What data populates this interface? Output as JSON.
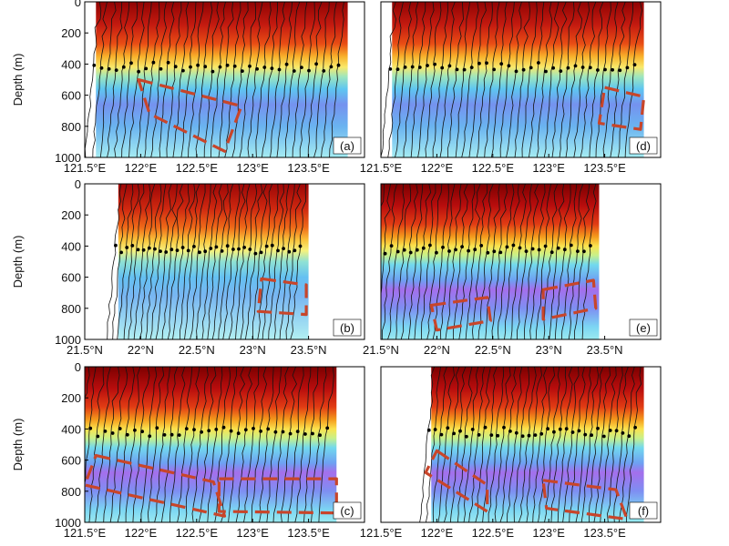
{
  "figure": {
    "panels": [
      {
        "id": "a",
        "label": "(a)",
        "axis": "lon",
        "ylabel": "Depth (m)",
        "yticks": [
          "0",
          "200",
          "400",
          "600",
          "800",
          "1000"
        ],
        "xticks": [
          "121.5°E",
          "122°E",
          "122.5°E",
          "123°E",
          "123.5°E"
        ],
        "data_range": [
          121.6,
          123.85
        ],
        "dashed_boxes": [
          [
            [
              121.98,
              500
            ],
            [
              122.9,
              670
            ],
            [
              122.75,
              960
            ],
            [
              122.08,
              720
            ]
          ]
        ]
      },
      {
        "id": "d",
        "label": "(d)",
        "axis": "lon",
        "ylabel": "",
        "yticks": [],
        "xticks": [
          "121.5°E",
          "122°E",
          "122.5°E",
          "123°E",
          "123.5°E"
        ],
        "data_range": [
          121.6,
          123.85
        ],
        "dashed_boxes": [
          [
            [
              123.5,
              550
            ],
            [
              123.85,
              610
            ],
            [
              123.82,
              820
            ],
            [
              123.45,
              780
            ]
          ]
        ]
      },
      {
        "id": "b",
        "label": "(b)",
        "axis": "lat",
        "ylabel": "Depth (m)",
        "yticks": [
          "0",
          "200",
          "400",
          "600",
          "800",
          "1000"
        ],
        "xticks": [
          "21.5°N",
          "22°N",
          "22.5°N",
          "23°N",
          "23.5°N"
        ],
        "data_range": [
          21.8,
          23.5
        ],
        "dashed_boxes": [
          [
            [
              23.08,
              610
            ],
            [
              23.48,
              650
            ],
            [
              23.48,
              840
            ],
            [
              23.05,
              820
            ]
          ]
        ]
      },
      {
        "id": "e",
        "label": "(e)",
        "axis": "lat",
        "ylabel": "",
        "yticks": [],
        "xticks": [
          "21.5°N",
          "22°N",
          "22.5°N",
          "23°N",
          "23.5°N"
        ],
        "data_range": [
          21.5,
          23.45
        ],
        "dashed_boxes": [
          [
            [
              21.95,
              780
            ],
            [
              22.45,
              730
            ],
            [
              22.48,
              880
            ],
            [
              22.0,
              940
            ]
          ],
          [
            [
              22.95,
              680
            ],
            [
              23.4,
              620
            ],
            [
              23.42,
              800
            ],
            [
              22.95,
              870
            ]
          ]
        ]
      },
      {
        "id": "c",
        "label": "(c)",
        "axis": "lon",
        "ylabel": "Depth (m)",
        "yticks": [
          "0",
          "200",
          "400",
          "600",
          "800",
          "1000"
        ],
        "xticks": [
          "121.5°E",
          "122°E",
          "122.5°E",
          "123°E",
          "123.5°E"
        ],
        "data_range": [
          121.5,
          123.75
        ],
        "dashed_boxes": [
          [
            [
              121.6,
              570
            ],
            [
              122.65,
              740
            ],
            [
              122.75,
              960
            ],
            [
              121.5,
              760
            ]
          ],
          [
            [
              122.7,
              720
            ],
            [
              123.75,
              720
            ],
            [
              123.75,
              940
            ],
            [
              122.7,
              930
            ]
          ]
        ]
      },
      {
        "id": "f",
        "label": "(f)",
        "axis": "lon",
        "ylabel": "",
        "yticks": [],
        "xticks": [
          "121.5°E",
          "122°E",
          "122.5°E",
          "123°E",
          "123.5°E"
        ],
        "data_range": [
          121.95,
          123.85
        ],
        "dashed_boxes": [
          [
            [
              122.0,
              540
            ],
            [
              122.45,
              760
            ],
            [
              122.45,
              930
            ],
            [
              121.9,
              680
            ]
          ],
          [
            [
              122.95,
              730
            ],
            [
              123.6,
              790
            ],
            [
              123.7,
              980
            ],
            [
              122.98,
              910
            ]
          ]
        ]
      }
    ]
  }
}
